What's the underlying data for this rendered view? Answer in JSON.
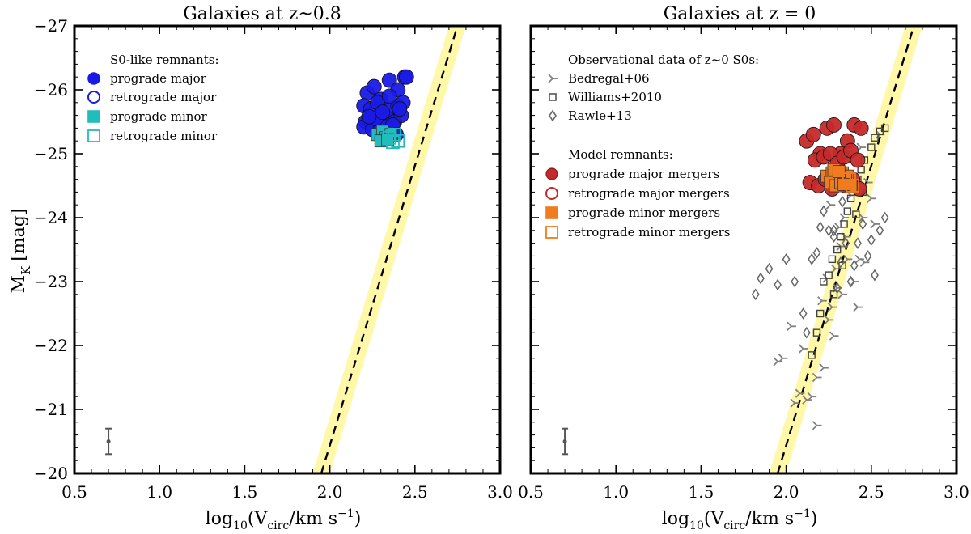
{
  "colors": {
    "prograde_major_left": "#1a1ae6",
    "prograde_minor_left": "#22bcbc",
    "prograde_major_right": "#c42a2a",
    "prograde_minor_right": "#f07c1e",
    "observations": "#808080",
    "tf_band": "#fff8a8",
    "tf_line": "#000000"
  },
  "chart_data": [
    {
      "type": "scatter",
      "title": "Galaxies at z~0.8",
      "xlabel": "log10(Vcirc/km s^-1)",
      "xlabel_parts": {
        "pre": "log",
        "sub1": "10",
        "mid": "(V",
        "sub2": "circ",
        "post": "/km s",
        "sup": "−1",
        "end": ")"
      },
      "ylabel": "MK [mag]",
      "ylabel_parts": {
        "main": "M",
        "sub": "K",
        "unit": "[mag]"
      },
      "xlim": [
        0.5,
        3.0
      ],
      "ylim": [
        -20,
        -27
      ],
      "xticks": [
        0.5,
        1.0,
        1.5,
        2.0,
        2.5,
        3.0
      ],
      "xtick_labels": [
        "0.5",
        "1.0",
        "1.5",
        "2.0",
        "2.5",
        "3.0"
      ],
      "yticks": [
        -27,
        -26,
        -25,
        -24,
        -23,
        -22,
        -21,
        -20
      ],
      "ytick_labels": [
        "−27",
        "−26",
        "−25",
        "−24",
        "−23",
        "−22",
        "−21",
        "−20"
      ],
      "relation": {
        "x": [
          1.95,
          2.75
        ],
        "y": [
          -20,
          -27
        ],
        "band_halfwidth": 0.05
      },
      "error_bar": {
        "x": 0.7,
        "y": -20.5,
        "err": 0.2
      },
      "legend": {
        "location": "upper-left",
        "heading": "S0-like remnants:",
        "entries": [
          "prograde major",
          "retrograde major",
          "prograde minor",
          "retrograde minor"
        ]
      },
      "series": [
        {
          "name": "prograde major",
          "marker": "circle",
          "filled": true,
          "color_key": "prograde_major_left",
          "x": [
            2.22,
            2.26,
            2.3,
            2.35,
            2.4,
            2.44,
            2.2,
            2.24,
            2.28,
            2.32,
            2.36,
            2.4,
            2.43,
            2.21,
            2.26,
            2.3,
            2.34,
            2.38,
            2.42,
            2.2,
            2.25,
            2.29,
            2.33,
            2.37,
            2.41,
            2.45,
            2.39,
            2.27,
            2.31,
            2.35,
            2.23
          ],
          "y": [
            -25.95,
            -26.05,
            -25.85,
            -26.15,
            -26.0,
            -26.2,
            -25.75,
            -25.7,
            -25.8,
            -25.6,
            -25.7,
            -25.75,
            -25.8,
            -25.5,
            -25.45,
            -25.6,
            -25.55,
            -25.5,
            -25.6,
            -25.42,
            -25.38,
            -25.35,
            -25.42,
            -25.45,
            -25.7,
            -26.2,
            -25.3,
            -25.55,
            -25.65,
            -25.9,
            -25.58
          ]
        },
        {
          "name": "retrograde major",
          "marker": "circle",
          "filled": false,
          "color_key": "prograde_major_left",
          "x": [],
          "y": []
        },
        {
          "name": "prograde minor",
          "marker": "square",
          "filled": true,
          "color_key": "prograde_minor_left",
          "x": [
            2.28,
            2.31,
            2.33,
            2.36,
            2.3,
            2.34
          ],
          "y": [
            -25.3,
            -25.35,
            -25.25,
            -25.3,
            -25.2,
            -25.22
          ]
        },
        {
          "name": "retrograde minor",
          "marker": "square",
          "filled": false,
          "color_key": "prograde_minor_left",
          "x": [
            2.35,
            2.38,
            2.4,
            2.37
          ],
          "y": [
            -25.25,
            -25.3,
            -25.2,
            -25.18
          ]
        }
      ]
    },
    {
      "type": "scatter",
      "title": "Galaxies at z = 0",
      "xlabel": "log10(Vcirc/km s^-1)",
      "xlabel_parts": {
        "pre": "log",
        "sub1": "10",
        "mid": "(V",
        "sub2": "circ",
        "post": "/km s",
        "sup": "−1",
        "end": ")"
      },
      "xlim": [
        0.5,
        3.0
      ],
      "ylim": [
        -20,
        -27
      ],
      "xticks": [
        0.5,
        1.0,
        1.5,
        2.0,
        2.5,
        3.0
      ],
      "xtick_labels": [
        "0.5",
        "1.0",
        "1.5",
        "2.0",
        "2.5",
        "3.0"
      ],
      "yticks": [
        -27,
        -26,
        -25,
        -24,
        -23,
        -22,
        -21,
        -20
      ],
      "relation": {
        "x": [
          1.95,
          2.75
        ],
        "y": [
          -20,
          -27
        ],
        "band_halfwidth": 0.05
      },
      "error_bar": {
        "x": 0.7,
        "y": -20.5,
        "err": 0.2
      },
      "legend": {
        "location": "upper-left",
        "obs_heading": "Observational data of z~0 S0s:",
        "obs_entries": [
          "Bedregal+06",
          "Williams+2010",
          "Rawle+13"
        ],
        "model_heading": "Model remnants:",
        "model_entries": [
          "prograde major mergers",
          "retrograde major mergers",
          "prograde minor mergers",
          "retrograde minor mergers"
        ]
      },
      "series": [
        {
          "name": "Bedregal+06",
          "marker": "tri",
          "filled": false,
          "color_key": "observations",
          "x": [
            1.95,
            1.98,
            2.05,
            2.08,
            2.12,
            2.18,
            2.22,
            2.25,
            2.28,
            2.3,
            2.33,
            2.36,
            2.4,
            2.43,
            2.45,
            2.38,
            2.35,
            2.32,
            2.29,
            2.27,
            2.24,
            2.21,
            2.15,
            2.1,
            2.5,
            2.52,
            2.48,
            2.55,
            2.42,
            2.46,
            2.03,
            2.18,
            2.26,
            2.34,
            2.4,
            2.37,
            2.31,
            2.44
          ],
          "y": [
            -21.75,
            -21.8,
            -21.1,
            -21.25,
            -21.15,
            -20.75,
            -21.65,
            -22.4,
            -22.15,
            -22.9,
            -22.8,
            -23.35,
            -23.0,
            -23.35,
            -24.0,
            -24.35,
            -23.7,
            -23.55,
            -23.2,
            -22.6,
            -23.05,
            -22.7,
            -21.2,
            -21.95,
            -24.3,
            -23.9,
            -24.55,
            -25.3,
            -22.6,
            -23.3,
            -22.3,
            -21.5,
            -24.2,
            -24.0,
            -25.0,
            -24.5,
            -23.85,
            -25.1
          ]
        },
        {
          "name": "Williams+2010",
          "marker": "square",
          "filled": false,
          "color_key": "observations",
          "x": [
            2.15,
            2.18,
            2.2,
            2.22,
            2.25,
            2.27,
            2.3,
            2.32,
            2.34,
            2.36,
            2.38,
            2.4,
            2.42,
            2.44,
            2.46,
            2.5,
            2.52,
            2.55,
            2.58,
            2.28,
            2.33,
            2.37,
            2.41,
            2.45
          ],
          "y": [
            -21.85,
            -22.2,
            -22.5,
            -23.0,
            -23.1,
            -23.35,
            -23.5,
            -23.7,
            -23.9,
            -24.1,
            -24.3,
            -24.45,
            -24.6,
            -24.75,
            -24.9,
            -25.1,
            -25.25,
            -25.35,
            -25.4,
            -22.8,
            -23.25,
            -24.55,
            -24.05,
            -24.4
          ]
        },
        {
          "name": "Rawle+13",
          "marker": "diamond",
          "filled": false,
          "color_key": "observations",
          "x": [
            1.82,
            1.85,
            1.9,
            1.95,
            2.0,
            2.05,
            2.1,
            2.12,
            2.15,
            2.18,
            2.2,
            2.22,
            2.25,
            2.28,
            2.3,
            2.32,
            2.35,
            2.38,
            2.4,
            2.42,
            2.45,
            2.48,
            2.5,
            2.52,
            2.55,
            2.58,
            2.28,
            2.33
          ],
          "y": [
            -22.8,
            -23.05,
            -23.2,
            -22.95,
            -23.35,
            -23.0,
            -22.5,
            -22.2,
            -23.35,
            -23.45,
            -23.85,
            -24.1,
            -23.8,
            -23.7,
            -22.9,
            -23.3,
            -23.6,
            -23.0,
            -23.25,
            -23.6,
            -23.9,
            -23.4,
            -23.65,
            -23.1,
            -23.8,
            -24.0,
            -23.8,
            -24.25
          ]
        },
        {
          "name": "prograde major mergers",
          "marker": "circle",
          "filled": true,
          "color_key": "prograde_major_right",
          "x": [
            2.12,
            2.16,
            2.2,
            2.24,
            2.28,
            2.32,
            2.36,
            2.4,
            2.44,
            2.17,
            2.22,
            2.26,
            2.3,
            2.34,
            2.38,
            2.42,
            2.14,
            2.19,
            2.23,
            2.27,
            2.31,
            2.35,
            2.39,
            2.43
          ],
          "y": [
            -25.2,
            -25.3,
            -25.0,
            -25.4,
            -25.45,
            -25.0,
            -25.2,
            -25.45,
            -25.4,
            -24.9,
            -24.95,
            -25.0,
            -24.85,
            -24.95,
            -25.05,
            -24.9,
            -24.55,
            -24.5,
            -24.6,
            -24.45,
            -24.55,
            -24.5,
            -24.6,
            -24.45
          ]
        },
        {
          "name": "retrograde major mergers",
          "marker": "circle",
          "filled": false,
          "color_key": "prograde_major_right",
          "x": [],
          "y": []
        },
        {
          "name": "prograde minor mergers",
          "marker": "square",
          "filled": true,
          "color_key": "prograde_minor_right",
          "x": [
            2.24,
            2.27,
            2.3,
            2.33,
            2.36,
            2.26,
            2.29,
            2.32,
            2.35,
            2.38,
            2.28,
            2.31,
            2.34
          ],
          "y": [
            -24.65,
            -24.7,
            -24.6,
            -24.7,
            -24.65,
            -24.55,
            -24.5,
            -24.55,
            -24.6,
            -24.5,
            -24.75,
            -24.72,
            -24.52
          ]
        },
        {
          "name": "retrograde minor mergers",
          "marker": "square",
          "filled": false,
          "color_key": "prograde_minor_right",
          "x": [
            2.37,
            2.39
          ],
          "y": [
            -24.6,
            -24.5
          ]
        }
      ]
    }
  ]
}
